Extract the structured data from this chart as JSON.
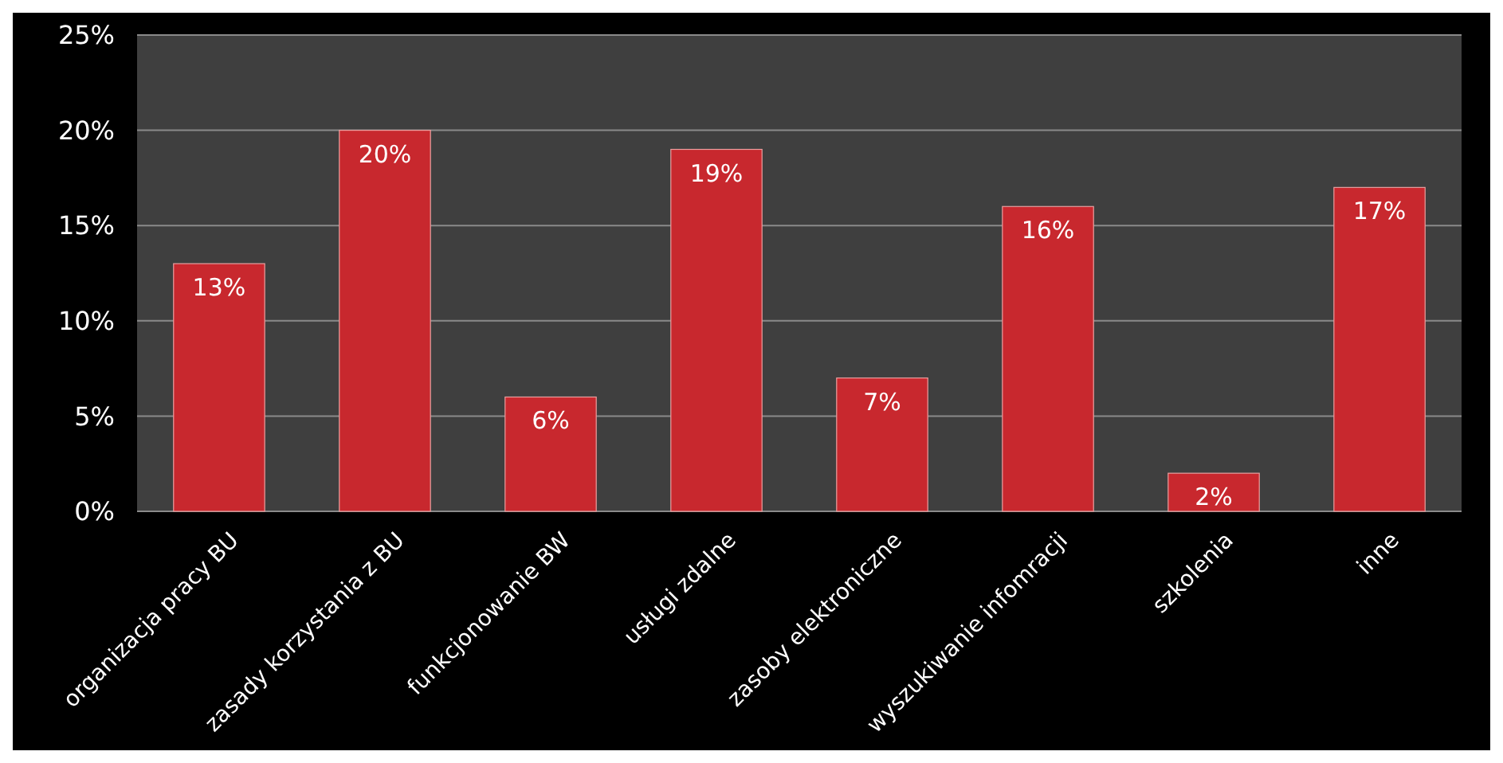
{
  "chart_data": {
    "type": "bar",
    "categories": [
      "organizacja pracy BU",
      "zasady korzystania z BU",
      "funkcjonowanie BW",
      "usługi zdalne",
      "zasoby elektroniczne",
      "wyszukiwanie infomracji",
      "szkolenia",
      "inne"
    ],
    "values": [
      13,
      20,
      6,
      19,
      7,
      16,
      2,
      17
    ],
    "value_labels": [
      "13%",
      "20%",
      "6%",
      "19%",
      "7%",
      "16%",
      "2%",
      "17%"
    ],
    "color": "#c8282e",
    "ylim": [
      0,
      25
    ],
    "yticks": [
      {
        "value": 0,
        "label": "0%"
      },
      {
        "value": 5,
        "label": "5%"
      },
      {
        "value": 10,
        "label": "10%"
      },
      {
        "value": 15,
        "label": "15%"
      },
      {
        "value": 20,
        "label": "20%"
      },
      {
        "value": 25,
        "label": "25%"
      }
    ],
    "grid": "y"
  }
}
